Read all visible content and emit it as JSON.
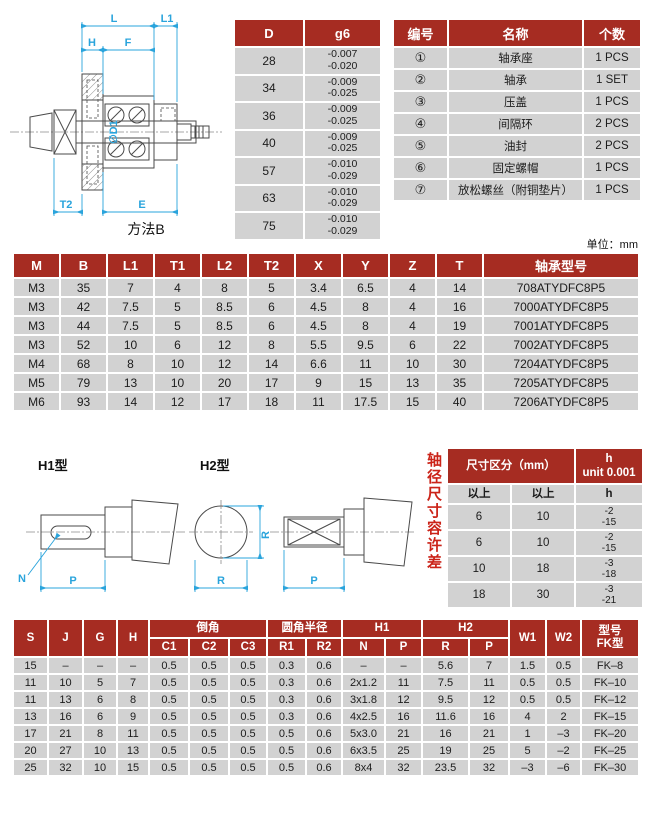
{
  "unit_label": "单位：mm",
  "drawing": {
    "caption": "方法B",
    "dims": {
      "L": "L",
      "L1": "L1",
      "H": "H",
      "F": "F",
      "D1": "∅D1",
      "T2": "T2",
      "E": "E"
    }
  },
  "h_drawings": {
    "h1_title": "H1型",
    "h2_title": "H2型",
    "dims": {
      "N": "N",
      "P1": "P",
      "R_v": "R",
      "R_h": "R",
      "P2": "P"
    }
  },
  "g6_table": {
    "headers": [
      "D",
      "g6"
    ],
    "rows": [
      [
        "28",
        "-0.007\n-0.020"
      ],
      [
        "34",
        "-0.009\n-0.025"
      ],
      [
        "36",
        "-0.009\n-0.025"
      ],
      [
        "40",
        "-0.009\n-0.025"
      ],
      [
        "57",
        "-0.010\n-0.029"
      ],
      [
        "63",
        "-0.010\n-0.029"
      ],
      [
        "75",
        "-0.010\n-0.029"
      ]
    ]
  },
  "parts_table": {
    "headers": [
      "编号",
      "名称",
      "个数"
    ],
    "rows": [
      [
        "①",
        "轴承座",
        "1 PCS"
      ],
      [
        "②",
        "轴承",
        "1 SET"
      ],
      [
        "③",
        "压盖",
        "1 PCS"
      ],
      [
        "④",
        "间隔环",
        "2 PCS"
      ],
      [
        "⑤",
        "油封",
        "2 PCS"
      ],
      [
        "⑥",
        "固定螺帽",
        "1 PCS"
      ],
      [
        "⑦",
        "放松螺丝（附铜垫片）",
        "1 PCS"
      ]
    ]
  },
  "main_table": {
    "headers": [
      "M",
      "B",
      "L1",
      "T1",
      "L2",
      "T2",
      "X",
      "Y",
      "Z",
      "T",
      "轴承型号"
    ],
    "rows": [
      [
        "M3",
        "35",
        "7",
        "4",
        "8",
        "5",
        "3.4",
        "6.5",
        "4",
        "14",
        "708ATYDFC8P5"
      ],
      [
        "M3",
        "42",
        "7.5",
        "5",
        "8.5",
        "6",
        "4.5",
        "8",
        "4",
        "16",
        "7000ATYDFC8P5"
      ],
      [
        "M3",
        "44",
        "7.5",
        "5",
        "8.5",
        "6",
        "4.5",
        "8",
        "4",
        "19",
        "7001ATYDFC8P5"
      ],
      [
        "M3",
        "52",
        "10",
        "6",
        "12",
        "8",
        "5.5",
        "9.5",
        "6",
        "22",
        "7002ATYDFC8P5"
      ],
      [
        "M4",
        "68",
        "8",
        "10",
        "12",
        "14",
        "6.6",
        "11",
        "10",
        "30",
        "7204ATYDFC8P5"
      ],
      [
        "M5",
        "79",
        "13",
        "10",
        "20",
        "17",
        "9",
        "15",
        "13",
        "35",
        "7205ATYDFC8P5"
      ],
      [
        "M6",
        "93",
        "14",
        "12",
        "17",
        "18",
        "11",
        "17.5",
        "15",
        "40",
        "7206ATYDFC8P5"
      ]
    ]
  },
  "tolerance_table": {
    "side_label": "轴径尺寸容许差",
    "title": "尺寸区分（mm）",
    "h_header": "h\nunit 0.001",
    "sub_headers": [
      "以上",
      "以上",
      "h"
    ],
    "rows": [
      [
        "6",
        "10",
        "-2\n-15"
      ],
      [
        "6",
        "10",
        "-2\n-15"
      ],
      [
        "10",
        "18",
        "-3\n-18"
      ],
      [
        "18",
        "30",
        "-3\n-21"
      ]
    ]
  },
  "bottom_table": {
    "header_row1": {
      "s": "S",
      "j": "J",
      "g": "G",
      "h": "H",
      "chamfer": "倒角",
      "fillet": "圆角半径",
      "h1": "H1",
      "h2": "H2",
      "w1": "W1",
      "w2": "W2",
      "model": "型号\nFK型"
    },
    "header_row2": [
      "C1",
      "C2",
      "C3",
      "R1",
      "R2",
      "N",
      "P",
      "R",
      "P"
    ],
    "rows": [
      [
        "15",
        "–",
        "–",
        "–",
        "0.5",
        "0.5",
        "0.5",
        "0.3",
        "0.6",
        "–",
        "–",
        "5.6",
        "7",
        "1.5",
        "0.5",
        "FK–8"
      ],
      [
        "11",
        "10",
        "5",
        "7",
        "0.5",
        "0.5",
        "0.5",
        "0.3",
        "0.6",
        "2x1.2",
        "11",
        "7.5",
        "11",
        "0.5",
        "0.5",
        "FK–10"
      ],
      [
        "11",
        "13",
        "6",
        "8",
        "0.5",
        "0.5",
        "0.5",
        "0.3",
        "0.6",
        "3x1.8",
        "12",
        "9.5",
        "12",
        "0.5",
        "0.5",
        "FK–12"
      ],
      [
        "13",
        "16",
        "6",
        "9",
        "0.5",
        "0.5",
        "0.5",
        "0.3",
        "0.6",
        "4x2.5",
        "16",
        "11.6",
        "16",
        "4",
        "2",
        "FK–15"
      ],
      [
        "17",
        "21",
        "8",
        "11",
        "0.5",
        "0.5",
        "0.5",
        "0.5",
        "0.6",
        "5x3.0",
        "21",
        "16",
        "21",
        "1",
        "–3",
        "FK–20"
      ],
      [
        "20",
        "27",
        "10",
        "13",
        "0.5",
        "0.5",
        "0.5",
        "0.5",
        "0.6",
        "6x3.5",
        "25",
        "19",
        "25",
        "5",
        "–2",
        "FK–25"
      ],
      [
        "25",
        "32",
        "10",
        "15",
        "0.5",
        "0.5",
        "0.5",
        "0.5",
        "0.6",
        "8x4",
        "32",
        "23.5",
        "32",
        "–3",
        "–6",
        "FK–30"
      ]
    ]
  },
  "colors": {
    "header_red": "#a62c22",
    "cell_gray": "#d2d2d2",
    "accent_red": "#cb2318",
    "dim_cyan": "#2aa4dc"
  }
}
